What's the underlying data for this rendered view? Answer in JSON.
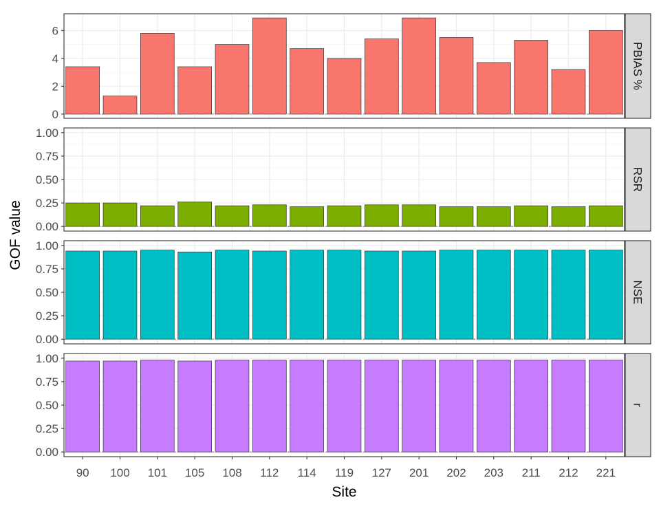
{
  "chart_data": {
    "type": "bar",
    "xlabel": "Site",
    "ylabel": "GOF value",
    "categories": [
      "90",
      "100",
      "101",
      "105",
      "108",
      "112",
      "114",
      "119",
      "127",
      "201",
      "202",
      "203",
      "211",
      "212",
      "221"
    ],
    "grid": true,
    "facets": [
      {
        "label": "PBIAS %",
        "color": "#F8766D",
        "ylim": [
          -0.3,
          7.2
        ],
        "yticks": [
          0,
          2,
          4,
          6
        ],
        "ytick_labels": [
          "0",
          "2",
          "4",
          "6"
        ],
        "values": [
          3.4,
          1.3,
          5.8,
          3.4,
          5.0,
          6.9,
          4.7,
          4.0,
          5.4,
          6.9,
          5.5,
          3.7,
          5.3,
          3.2,
          6.0
        ]
      },
      {
        "label": "RSR",
        "color": "#7CAE00",
        "ylim": [
          -0.05,
          1.05
        ],
        "yticks": [
          0,
          0.25,
          0.5,
          0.75,
          1.0
        ],
        "ytick_labels": [
          "0.00",
          "0.25",
          "0.50",
          "0.75",
          "1.00"
        ],
        "values": [
          0.25,
          0.25,
          0.22,
          0.26,
          0.22,
          0.23,
          0.21,
          0.22,
          0.23,
          0.23,
          0.21,
          0.21,
          0.22,
          0.21,
          0.22
        ]
      },
      {
        "label": "NSE",
        "color": "#00BFC4",
        "ylim": [
          -0.05,
          1.05
        ],
        "yticks": [
          0,
          0.25,
          0.5,
          0.75,
          1.0
        ],
        "ytick_labels": [
          "0.00",
          "0.25",
          "0.50",
          "0.75",
          "1.00"
        ],
        "values": [
          0.94,
          0.94,
          0.95,
          0.93,
          0.95,
          0.94,
          0.95,
          0.95,
          0.94,
          0.94,
          0.95,
          0.95,
          0.95,
          0.95,
          0.95
        ]
      },
      {
        "label": "r",
        "color": "#C77CFF",
        "ylim": [
          -0.05,
          1.05
        ],
        "yticks": [
          0,
          0.25,
          0.5,
          0.75,
          1.0
        ],
        "ytick_labels": [
          "0.00",
          "0.25",
          "0.50",
          "0.75",
          "1.00"
        ],
        "values": [
          0.97,
          0.97,
          0.98,
          0.97,
          0.98,
          0.98,
          0.98,
          0.98,
          0.98,
          0.98,
          0.98,
          0.98,
          0.98,
          0.98,
          0.98
        ]
      }
    ]
  }
}
